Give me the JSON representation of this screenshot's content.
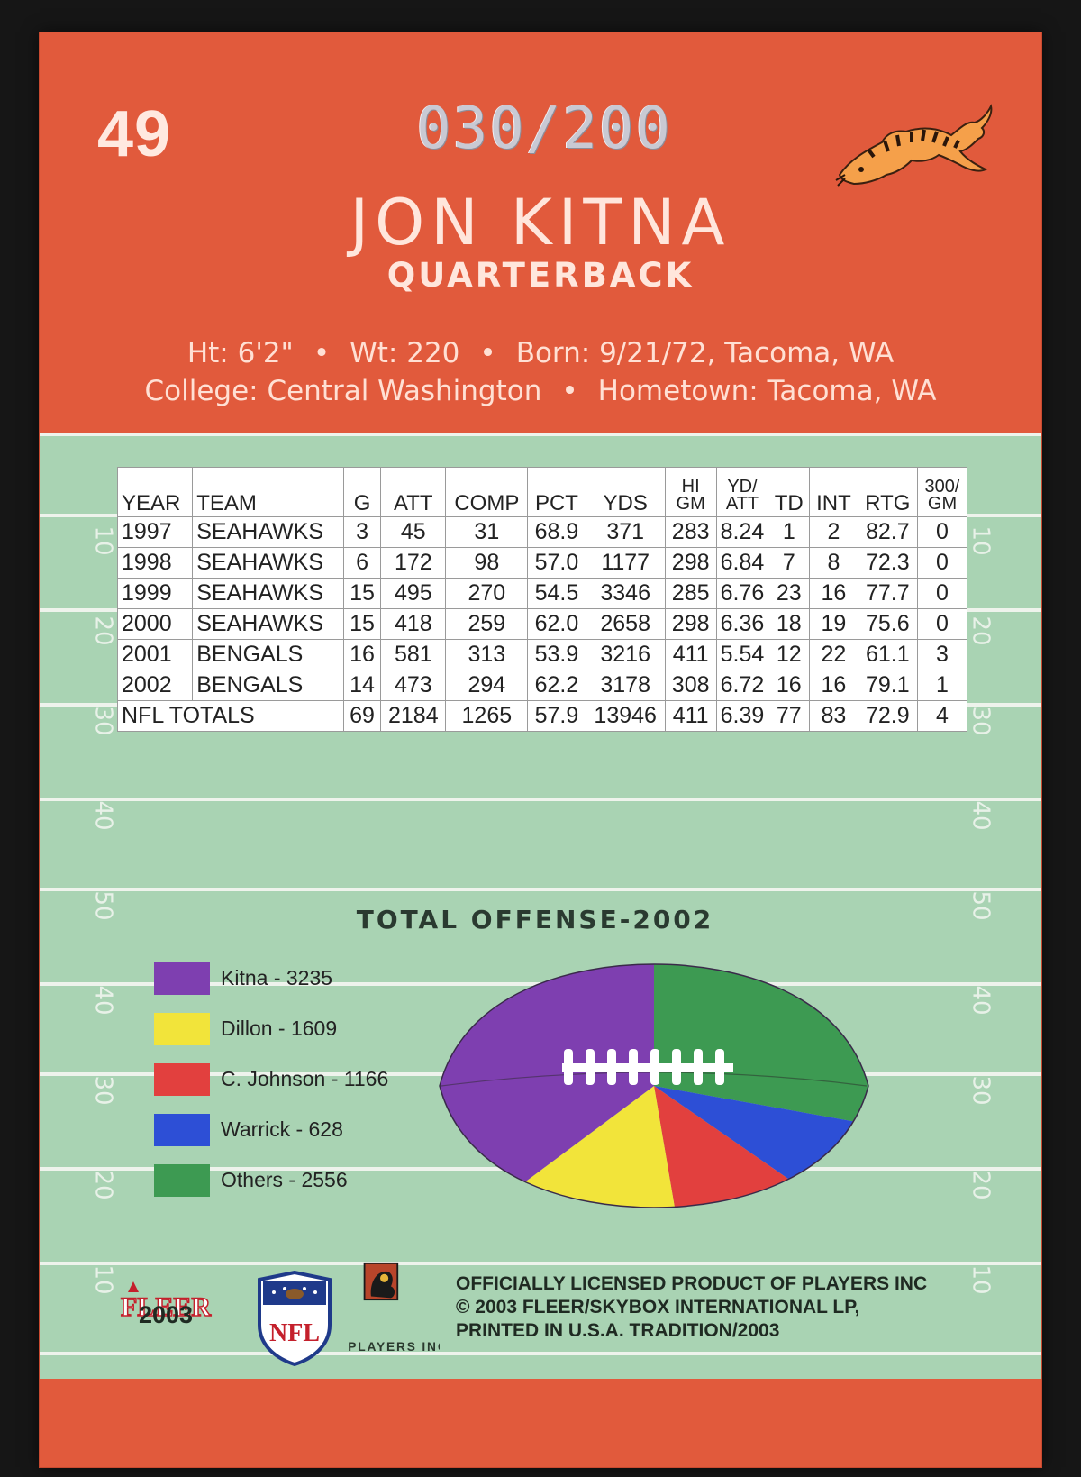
{
  "card": {
    "number": "49",
    "serial": "030/200",
    "player_name": "JON KITNA",
    "position": "QUARTERBACK",
    "bio": {
      "ht": "Ht: 6'2\"",
      "wt": "Wt: 220",
      "born": "Born: 9/21/72, Tacoma, WA",
      "college": "College: Central Washington",
      "hometown": "Hometown: Tacoma, WA",
      "separator": "•"
    },
    "team_logo_icon": "bengals-tiger-icon",
    "colors": {
      "orange": "#e15a3c",
      "field": "#a9d3b3"
    }
  },
  "stats": {
    "headers": [
      "YEAR",
      "TEAM",
      "G",
      "ATT",
      "COMP",
      "PCT",
      "YDS",
      "HI GM",
      "YD/ ATT",
      "TD",
      "INT",
      "RTG",
      "300/ GM"
    ],
    "rows": [
      [
        "1997",
        "SEAHAWKS",
        "3",
        "45",
        "31",
        "68.9",
        "371",
        "283",
        "8.24",
        "1",
        "2",
        "82.7",
        "0"
      ],
      [
        "1998",
        "SEAHAWKS",
        "6",
        "172",
        "98",
        "57.0",
        "1177",
        "298",
        "6.84",
        "7",
        "8",
        "72.3",
        "0"
      ],
      [
        "1999",
        "SEAHAWKS",
        "15",
        "495",
        "270",
        "54.5",
        "3346",
        "285",
        "6.76",
        "23",
        "16",
        "77.7",
        "0"
      ],
      [
        "2000",
        "SEAHAWKS",
        "15",
        "418",
        "259",
        "62.0",
        "2658",
        "298",
        "6.36",
        "18",
        "19",
        "75.6",
        "0"
      ],
      [
        "2001",
        "BENGALS",
        "16",
        "581",
        "313",
        "53.9",
        "3216",
        "411",
        "5.54",
        "12",
        "22",
        "61.1",
        "3"
      ],
      [
        "2002",
        "BENGALS",
        "14",
        "473",
        "294",
        "62.2",
        "3178",
        "308",
        "6.72",
        "16",
        "16",
        "79.1",
        "1"
      ]
    ],
    "totals": [
      "NFL TOTALS",
      "69",
      "2184",
      "1265",
      "57.9",
      "13946",
      "411",
      "6.39",
      "77",
      "83",
      "72.9",
      "4"
    ]
  },
  "field": {
    "yard_numbers_left": [
      "10",
      "20",
      "30",
      "40",
      "50",
      "40",
      "30",
      "20",
      "10"
    ],
    "yard_numbers_right": [
      "10",
      "20",
      "30",
      "40",
      "50",
      "40",
      "30",
      "20",
      "10"
    ]
  },
  "chart_data": {
    "type": "pie",
    "title": "TOTAL OFFENSE-2002",
    "categories": [
      "Kitna",
      "Dillon",
      "C. Johnson",
      "Warrick",
      "Others"
    ],
    "values": [
      3235,
      1609,
      1166,
      628,
      2556
    ],
    "colors": [
      "#7e3fb0",
      "#f2e43a",
      "#e2403e",
      "#2d4fd6",
      "#3d9a52"
    ],
    "legend": [
      "Kitna - 3235",
      "Dillon - 1609",
      "C. Johnson - 1166",
      "Warrick - 628",
      "Others - 2556"
    ],
    "legend_placement": "left"
  },
  "footer": {
    "fleer_logo": "FLEER",
    "year": "2003",
    "nfl_logo": "NFL",
    "players_logo": "PLAYERS INC",
    "legal_lines": [
      "OFFICIALLY LICENSED PRODUCT OF PLAYERS INC",
      "© 2003 FLEER/SKYBOX INTERNATIONAL LP,",
      "PRINTED IN U.S.A. TRADITION/2003"
    ]
  }
}
